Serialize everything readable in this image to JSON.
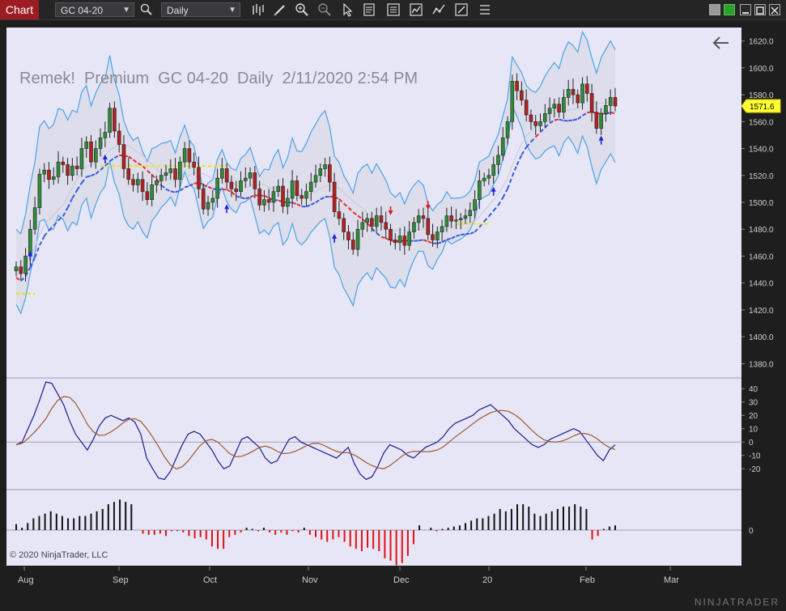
{
  "toolbar": {
    "chart_tab": "Chart",
    "instrument": "GC 04-20",
    "interval": "Daily",
    "icons": [
      "search-icon",
      "bar-type-icon",
      "pencil-icon",
      "zoom-in-icon",
      "zoom-out-icon",
      "pointer-icon",
      "data-box-icon",
      "properties-icon",
      "indicators-icon",
      "strategies-icon",
      "export-icon",
      "templates-icon"
    ]
  },
  "chart": {
    "title": "Remek!  Premium  GC 04-20  Daily  2/11/2020 2:54 PM",
    "copyright": "© 2020 NinjaTrader, LLC",
    "brand": "NINJATRADER",
    "current_price": "1571.6",
    "price_ticks": [
      "1620.0",
      "1600.0",
      "1580.0",
      "1560.0",
      "1540.0",
      "1520.0",
      "1500.0",
      "1480.0",
      "1460.0",
      "1440.0",
      "1420.0",
      "1400.0",
      "1380.0"
    ],
    "osc_ticks": [
      "40",
      "30",
      "20",
      "10",
      "0",
      "-10",
      "-20"
    ],
    "hist_ticks": [
      "0"
    ],
    "months": [
      "Aug",
      "Sep",
      "Oct",
      "Nov",
      "Dec",
      "20",
      "Feb",
      "Mar"
    ],
    "colors": {
      "background": "#e6e6f7",
      "up": "#2e8b3a",
      "down": "#b22222",
      "band": "#4da3e6",
      "trail_up": "#3b5bdb",
      "trail_down": "#e03131",
      "yellow": "#f2e600"
    }
  },
  "chart_data": {
    "type": "candlestick",
    "price_range": [
      1370,
      1630
    ],
    "closes": [
      1452,
      1447,
      1460,
      1480,
      1496,
      1521,
      1524,
      1517,
      1519,
      1530,
      1528,
      1520,
      1527,
      1525,
      1540,
      1545,
      1530,
      1540,
      1548,
      1552,
      1570,
      1553,
      1543,
      1525,
      1517,
      1513,
      1517,
      1508,
      1502,
      1513,
      1516,
      1520,
      1522,
      1525,
      1517,
      1530,
      1540,
      1530,
      1526,
      1510,
      1495,
      1500,
      1503,
      1518,
      1525,
      1515,
      1510,
      1508,
      1516,
      1518,
      1522,
      1510,
      1498,
      1502,
      1500,
      1508,
      1512,
      1497,
      1503,
      1516,
      1505,
      1503,
      1508,
      1515,
      1520,
      1525,
      1528,
      1515,
      1493,
      1488,
      1478,
      1472,
      1465,
      1480,
      1485,
      1488,
      1482,
      1490,
      1485,
      1480,
      1472,
      1470,
      1475,
      1468,
      1478,
      1485,
      1490,
      1488,
      1476,
      1472,
      1478,
      1482,
      1490,
      1486,
      1487,
      1488,
      1490,
      1494,
      1502,
      1516,
      1518,
      1520,
      1528,
      1535,
      1548,
      1560,
      1590,
      1583,
      1576,
      1565,
      1560,
      1557,
      1560,
      1566,
      1570,
      1573,
      1567,
      1578,
      1584,
      1580,
      1574,
      1588,
      1581,
      1567,
      1555,
      1566,
      1572,
      1578,
      1571.6
    ],
    "oscillator_range": [
      -32,
      45
    ],
    "histogram": [
      5,
      2,
      6,
      10,
      12,
      14,
      16,
      14,
      12,
      10,
      10,
      12,
      12,
      14,
      16,
      18,
      22,
      24,
      26,
      24,
      22,
      0,
      -3,
      -4,
      -4,
      -3,
      -5,
      -1,
      -1,
      -2,
      -5,
      -7,
      -6,
      -8,
      -14,
      -16,
      -16,
      -6,
      -4,
      -2,
      2,
      1,
      -1,
      2,
      -2,
      -4,
      -2,
      -4,
      -1,
      -2,
      2,
      -4,
      -6,
      -8,
      -10,
      -8,
      -6,
      -10,
      -14,
      -16,
      -18,
      -15,
      -16,
      -18,
      -24,
      -26,
      -30,
      -28,
      -22,
      -12,
      4,
      0,
      2,
      -1,
      1,
      2,
      3,
      4,
      6,
      8,
      10,
      10,
      12,
      14,
      18,
      16,
      18,
      22,
      22,
      20,
      14,
      12,
      14,
      16,
      18,
      20,
      20,
      22,
      20,
      18,
      -8,
      -5,
      1,
      3,
      4
    ],
    "oscillator_fast": [
      -2,
      0,
      10,
      20,
      32,
      45,
      44,
      36,
      28,
      16,
      6,
      0,
      -6,
      2,
      12,
      18,
      20,
      18,
      16,
      18,
      15,
      6,
      -12,
      -20,
      -27,
      -28,
      -22,
      -12,
      -2,
      6,
      8,
      6,
      0,
      -6,
      -14,
      -20,
      -18,
      -8,
      2,
      4,
      0,
      -4,
      -12,
      -16,
      -14,
      -6,
      2,
      4,
      0,
      -2,
      -4,
      -6,
      -8,
      -10,
      -12,
      -8,
      -4,
      -16,
      -24,
      -28,
      -26,
      -18,
      -8,
      -2,
      -4,
      -6,
      -10,
      -12,
      -8,
      -4,
      -2,
      0,
      4,
      10,
      14,
      16,
      18,
      20,
      24,
      26,
      28,
      24,
      20,
      16,
      10,
      6,
      2,
      -2,
      -4,
      -2,
      2,
      4,
      6,
      8,
      10,
      8,
      2,
      -4,
      -10,
      -14,
      -6,
      -2
    ]
  }
}
